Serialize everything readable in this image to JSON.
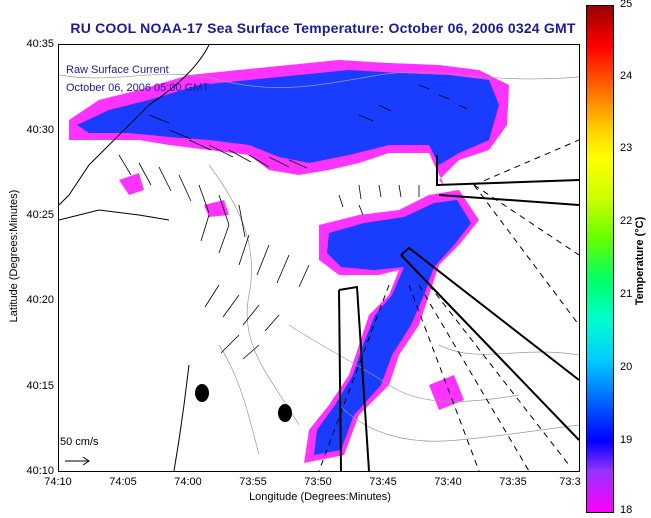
{
  "title": "RU COOL  NOAA-17  Sea Surface Temperature:  October 06, 2006 0324 GMT",
  "legend": {
    "current_label": "Raw Surface Current",
    "time_label": "October 06, 2006 05:00 GMT"
  },
  "scale_label": "50 cm/s",
  "axes": {
    "x_title": "Longitude (Degrees:Minutes)",
    "y_title": "Latitude (Degrees:Minutes)",
    "x_ticks": [
      "74:10",
      "74:05",
      "74:00",
      "73:55",
      "73:50",
      "73:45",
      "73:40",
      "73:35",
      "73:3"
    ],
    "y_ticks": [
      "40:35",
      "40:30",
      "40:25",
      "40:20",
      "40:15",
      "40:10"
    ]
  },
  "colorbar": {
    "title": "Temperature (°C)",
    "ticks": [
      "25",
      "24",
      "23",
      "22",
      "21",
      "20",
      "19",
      "18"
    ],
    "range": [
      18,
      25
    ]
  },
  "colors": {
    "title_color": "#1a1a9a",
    "sst_warm": "#1a3cff",
    "sst_cool": "#ff33ff"
  }
}
